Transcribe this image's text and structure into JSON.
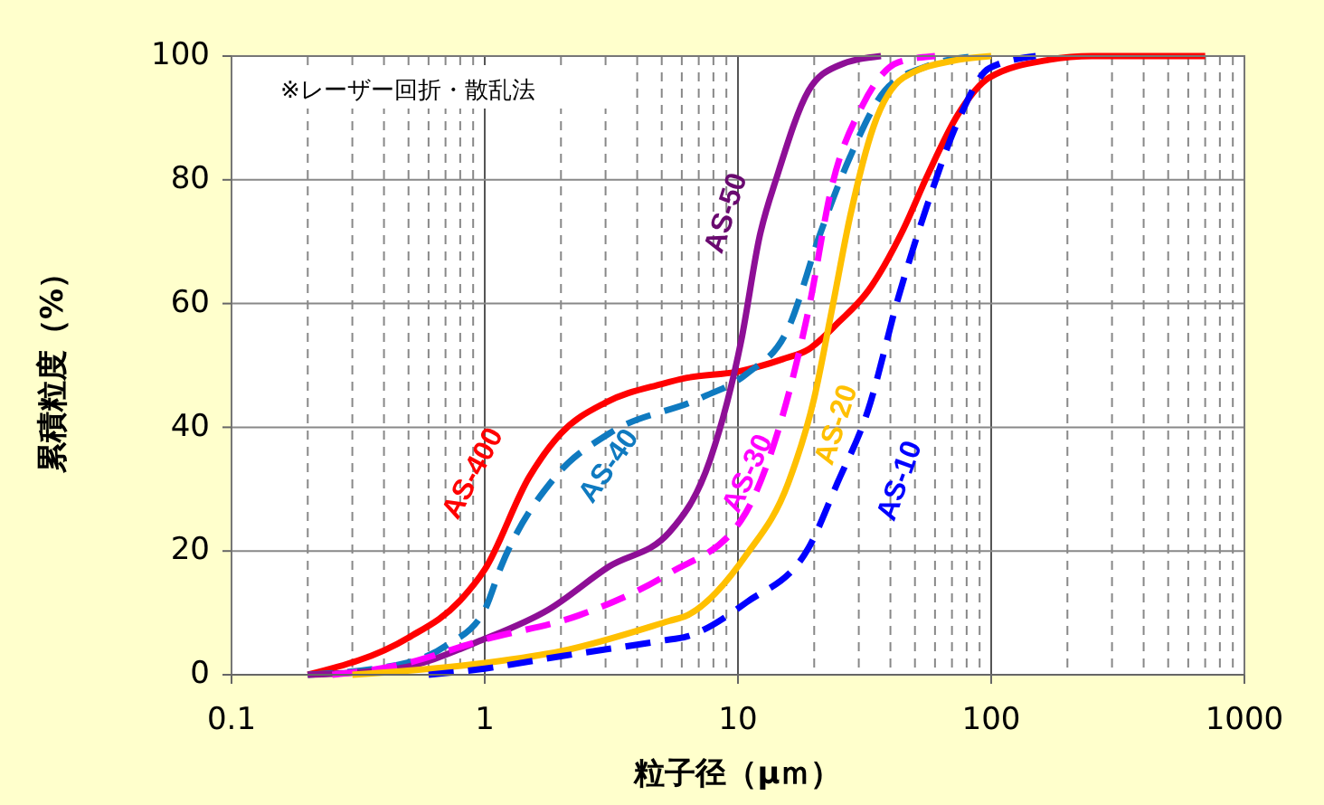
{
  "chart_data": {
    "type": "line",
    "xlabel": "粒子径（μｍ）",
    "ylabel": "累積粒度（%）",
    "log": "x",
    "xlim": [
      0.1,
      1000
    ],
    "xticks": [
      0.1,
      1,
      10,
      100,
      1000
    ],
    "ylim": [
      0,
      100
    ],
    "yticks": [
      0,
      20,
      40,
      60,
      80,
      100
    ],
    "grid": true,
    "marker": "none",
    "annotations": [
      "※レーザー回折・散乱法"
    ],
    "series": [
      {
        "name": "AS-400",
        "color": "#ff0000",
        "line_style": "solid",
        "x": [
          0.2,
          0.5,
          0.8,
          1,
          1.5,
          2,
          3,
          5,
          6.3,
          10,
          15,
          19,
          25,
          32.6,
          45,
          56,
          74,
          98,
          169,
          250,
          700
        ],
        "values": [
          0,
          6,
          12,
          17,
          32,
          39,
          44,
          47,
          48,
          49,
          51,
          52.6,
          57,
          62,
          72,
          80.7,
          90.6,
          96.5,
          99.4,
          100,
          100
        ]
      },
      {
        "name": "AS-40",
        "color": "#0f7ac0",
        "line_style": "dashed",
        "x": [
          0.2,
          0.5,
          0.71,
          1,
          1.16,
          1.9,
          3.1,
          7.1,
          10.8,
          15.8,
          21,
          27.7,
          38,
          56,
          88
        ],
        "values": [
          0,
          2,
          4.8,
          10.5,
          17.5,
          32,
          39,
          44.7,
          48.6,
          56,
          71,
          83.7,
          94.4,
          98.4,
          100
        ]
      },
      {
        "name": "AS-50",
        "color": "#8e0f96",
        "line_style": "solid",
        "x": [
          0.2,
          0.45,
          1,
          1.78,
          3.1,
          5.35,
          7.8,
          10.3,
          12.2,
          14.3,
          19,
          24.7,
          36.7
        ],
        "values": [
          0,
          1,
          5.8,
          10.5,
          17.5,
          23,
          35,
          54,
          71,
          80.7,
          94.4,
          98.4,
          100
        ]
      },
      {
        "name": "AS-30",
        "color": "#ff00ff",
        "line_style": "dashed",
        "x": [
          0.25,
          0.45,
          1,
          2.35,
          5.35,
          10.3,
          14.3,
          19,
          23.5,
          31,
          43,
          60
        ],
        "values": [
          0,
          1.5,
          5.7,
          9.6,
          16.4,
          25,
          39,
          59,
          79,
          92,
          99,
          100
        ]
      },
      {
        "name": "AS-20",
        "color": "#ffc000",
        "line_style": "solid",
        "x": [
          0.3,
          1,
          2,
          5.35,
          6.3,
          10.8,
          15.8,
          20,
          23.5,
          27.7,
          34.3,
          45,
          74,
          100
        ],
        "values": [
          0,
          1.9,
          3.8,
          8.7,
          9.6,
          19.4,
          31,
          44.7,
          59,
          74,
          88.6,
          96.5,
          99.4,
          100
        ]
      },
      {
        "name": "AS-10",
        "color": "#0000ff",
        "line_style": "dashed",
        "x": [
          0.6,
          1,
          2,
          5,
          6.3,
          10.8,
          19,
          24.7,
          32.6,
          43,
          56,
          74,
          98,
          150
        ],
        "values": [
          0,
          1,
          3,
          5.5,
          6.2,
          11.7,
          20.5,
          31,
          42.7,
          61,
          76,
          89.5,
          98,
          100
        ]
      }
    ]
  }
}
